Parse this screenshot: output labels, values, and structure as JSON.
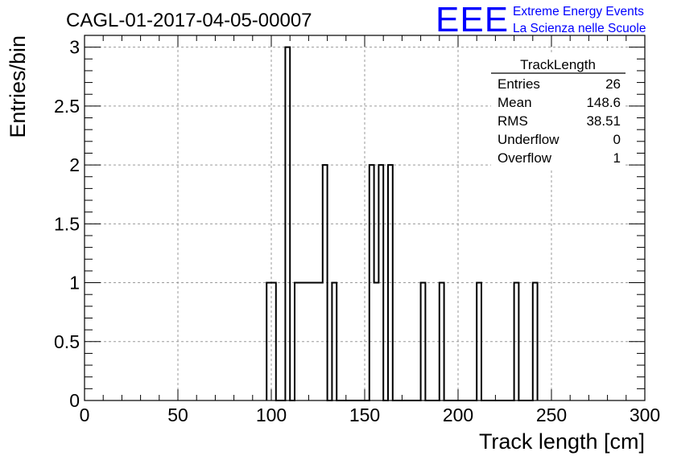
{
  "chart_data": {
    "type": "histogram",
    "title": "CAGL-01-2017-04-05-00007",
    "xlabel": "Track length [cm]",
    "ylabel": "Entries/bin",
    "xlim": [
      0,
      300
    ],
    "ylim": [
      0,
      3.1
    ],
    "x_ticks": [
      0,
      50,
      100,
      150,
      200,
      250,
      300
    ],
    "x_tick_labels": [
      "0",
      "50",
      "100",
      "150",
      "200",
      "250",
      "300"
    ],
    "y_ticks": [
      0,
      0.5,
      1,
      1.5,
      2,
      2.5,
      3
    ],
    "y_tick_labels": [
      "0",
      "0.5",
      "1",
      "1.5",
      "2",
      "2.5",
      "3"
    ],
    "grid": true,
    "bin_width": 2.5,
    "bins": [
      {
        "x0": 97.5,
        "x1": 102.5,
        "count": 1
      },
      {
        "x0": 107.5,
        "x1": 110,
        "count": 3
      },
      {
        "x0": 112.5,
        "x1": 127.5,
        "count": 1
      },
      {
        "x0": 127.5,
        "x1": 130,
        "count": 2
      },
      {
        "x0": 132.5,
        "x1": 135,
        "count": 1
      },
      {
        "x0": 152.5,
        "x1": 155,
        "count": 2
      },
      {
        "x0": 155,
        "x1": 157.5,
        "count": 1
      },
      {
        "x0": 157.5,
        "x1": 160,
        "count": 2
      },
      {
        "x0": 162.5,
        "x1": 165,
        "count": 2
      },
      {
        "x0": 180,
        "x1": 182.5,
        "count": 1
      },
      {
        "x0": 190,
        "x1": 192.5,
        "count": 1
      },
      {
        "x0": 210,
        "x1": 212.5,
        "count": 1
      },
      {
        "x0": 230,
        "x1": 232.5,
        "count": 1
      },
      {
        "x0": 240,
        "x1": 242.5,
        "count": 1
      }
    ],
    "stats_box": {
      "title": "TrackLength",
      "rows": [
        {
          "label": "Entries",
          "value": "26"
        },
        {
          "label": "Mean",
          "value": "148.6"
        },
        {
          "label": "RMS",
          "value": "38.51"
        },
        {
          "label": "Underflow",
          "value": "0"
        },
        {
          "label": "Overflow",
          "value": "1"
        }
      ]
    }
  },
  "logo": {
    "mark": "EEE",
    "line1": "Extreme Energy Events",
    "line2": "La Scienza nelle Scuole",
    "color": "#0000ff"
  }
}
